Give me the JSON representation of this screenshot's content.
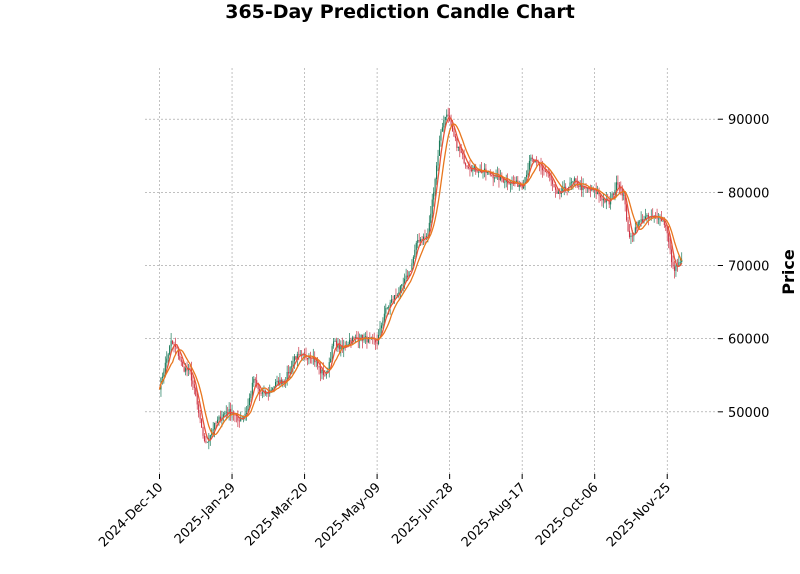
{
  "chart_data": {
    "type": "candlestick",
    "title": "365-Day Prediction Candle Chart",
    "xlabel": "",
    "ylabel": "Price",
    "ylim": [
      41500,
      97000
    ],
    "x_ticks": [
      "2024-Dec-10",
      "2025-Jan-29",
      "2025-Mar-20",
      "2025-May-09",
      "2025-Jun-28",
      "2025-Aug-17",
      "2025-Oct-06",
      "2025-Nov-25"
    ],
    "y_ticks": [
      50000,
      60000,
      70000,
      80000,
      90000
    ],
    "y_tick_labels": [
      "50000",
      "60000",
      "70000",
      "80000",
      "90000"
    ],
    "x_range": [
      "2024-Nov-30",
      "2025-Dec-30"
    ],
    "data_start": "2024-Dec-10",
    "data_end": "2025-Dec-05",
    "grid": true,
    "y_axis_side": "right",
    "colors": {
      "up": "#1a7a5a",
      "down": "#cc3344",
      "ma_fast": "#e8553a",
      "ma_slow": "#e8771e"
    },
    "close_trend": [
      [
        "2024-Dec-10",
        53500
      ],
      [
        "2024-Dec-14",
        56500
      ],
      [
        "2024-Dec-18",
        59500
      ],
      [
        "2024-Dec-22",
        58500
      ],
      [
        "2024-Dec-26",
        56000
      ],
      [
        "2024-Dec-31",
        55500
      ],
      [
        "2025-Jan-04",
        52000
      ],
      [
        "2025-Jan-08",
        47500
      ],
      [
        "2025-Jan-11",
        45500
      ],
      [
        "2025-Jan-15",
        47500
      ],
      [
        "2025-Jan-20",
        49000
      ],
      [
        "2025-Jan-25",
        50000
      ],
      [
        "2025-Jan-29",
        50000
      ],
      [
        "2025-Feb-02",
        48800
      ],
      [
        "2025-Feb-08",
        50000
      ],
      [
        "2025-Feb-13",
        54500
      ],
      [
        "2025-Feb-17",
        52500
      ],
      [
        "2025-Feb-22",
        52500
      ],
      [
        "2025-Feb-28",
        53800
      ],
      [
        "2025-Mar-07",
        54500
      ],
      [
        "2025-Mar-13",
        57500
      ],
      [
        "2025-Mar-20",
        57500
      ],
      [
        "2025-Mar-25",
        57800
      ],
      [
        "2025-Mar-31",
        55500
      ],
      [
        "2025-Apr-04",
        55000
      ],
      [
        "2025-Apr-09",
        59500
      ],
      [
        "2025-Apr-15",
        58500
      ],
      [
        "2025-Apr-20",
        59800
      ],
      [
        "2025-Apr-27",
        60200
      ],
      [
        "2025-May-04",
        59800
      ],
      [
        "2025-May-09",
        59500
      ],
      [
        "2025-May-14",
        63500
      ],
      [
        "2025-May-20",
        65500
      ],
      [
        "2025-May-26",
        67000
      ],
      [
        "2025-Jun-01",
        69500
      ],
      [
        "2025-Jun-06",
        73500
      ],
      [
        "2025-Jun-13",
        74000
      ],
      [
        "2025-Jun-18",
        82000
      ],
      [
        "2025-Jun-22",
        88500
      ],
      [
        "2025-Jun-26",
        91000
      ],
      [
        "2025-Jun-30",
        88000
      ],
      [
        "2025-Jul-04",
        86000
      ],
      [
        "2025-Jul-09",
        84000
      ],
      [
        "2025-Jul-14",
        83200
      ],
      [
        "2025-Jul-22",
        82800
      ],
      [
        "2025-Aug-01",
        82000
      ],
      [
        "2025-Aug-10",
        81300
      ],
      [
        "2025-Aug-17",
        81000
      ],
      [
        "2025-Aug-23",
        84500
      ],
      [
        "2025-Aug-29",
        83500
      ],
      [
        "2025-Sep-04",
        82500
      ],
      [
        "2025-Sep-10",
        79500
      ],
      [
        "2025-Sep-16",
        80500
      ],
      [
        "2025-Sep-22",
        81500
      ],
      [
        "2025-Sep-28",
        80500
      ],
      [
        "2025-Oct-06",
        80200
      ],
      [
        "2025-Oct-12",
        79000
      ],
      [
        "2025-Oct-16",
        78500
      ],
      [
        "2025-Oct-22",
        81500
      ],
      [
        "2025-Oct-26",
        79500
      ],
      [
        "2025-Oct-30",
        73500
      ],
      [
        "2025-Nov-04",
        75500
      ],
      [
        "2025-Nov-09",
        76500
      ],
      [
        "2025-Nov-14",
        76500
      ],
      [
        "2025-Nov-19",
        76800
      ],
      [
        "2025-Nov-24",
        75500
      ],
      [
        "2025-Nov-29",
        69500
      ],
      [
        "2025-Dec-05",
        70500
      ]
    ]
  }
}
